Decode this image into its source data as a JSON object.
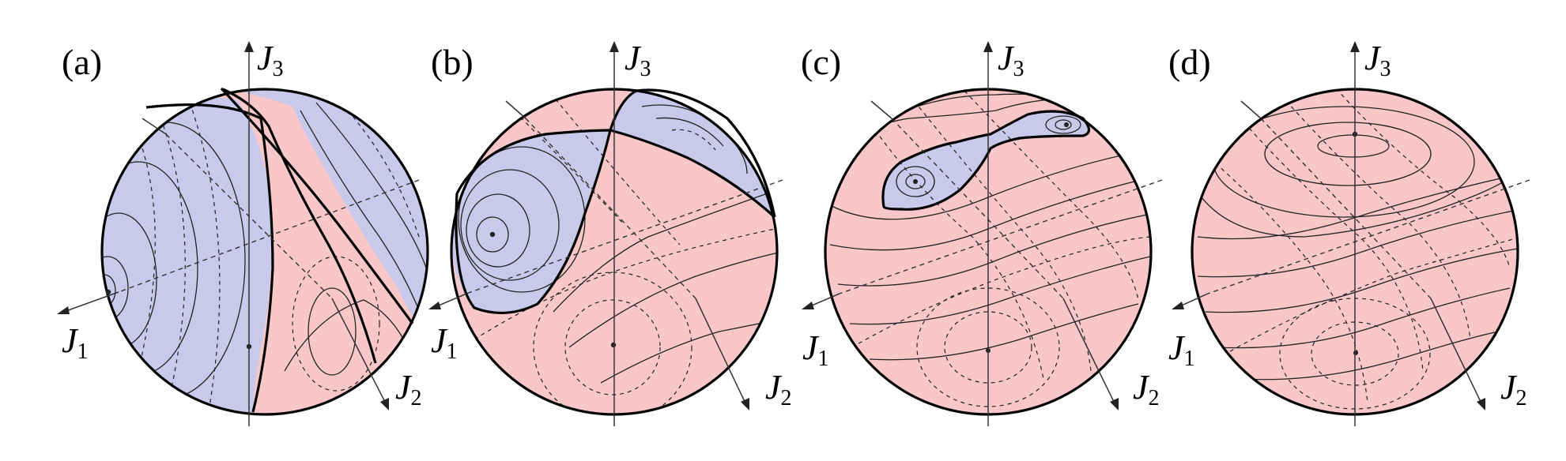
{
  "figure": {
    "colors": {
      "stable_region": "#c9c9ec",
      "unstable_region": "#f9c7c7",
      "outline": "#000000"
    },
    "panels": [
      {
        "label": "(a)",
        "axes": {
          "j1": "J",
          "j1_sub": "1",
          "j2": "J",
          "j2_sub": "2",
          "j3": "J",
          "j3_sub": "3"
        }
      },
      {
        "label": "(b)",
        "axes": {
          "j1": "J",
          "j1_sub": "1",
          "j2": "J",
          "j2_sub": "2",
          "j3": "J",
          "j3_sub": "3"
        }
      },
      {
        "label": "(c)",
        "axes": {
          "j1": "J",
          "j1_sub": "1",
          "j2": "J",
          "j2_sub": "2",
          "j3": "J",
          "j3_sub": "3"
        }
      },
      {
        "label": "(d)",
        "axes": {
          "j1": "J",
          "j1_sub": "1",
          "j2": "J",
          "j2_sub": "2",
          "j3": "J",
          "j3_sub": "3"
        }
      }
    ]
  }
}
